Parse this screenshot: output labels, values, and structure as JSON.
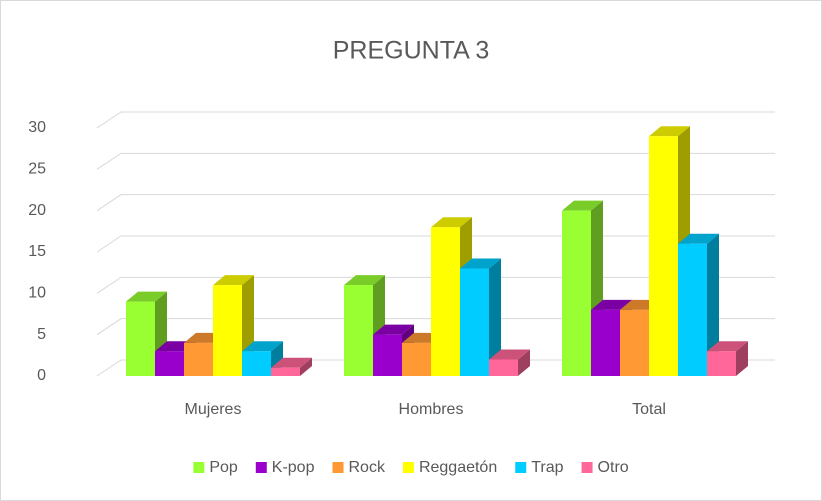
{
  "chart_data": {
    "type": "bar3d",
    "title": "PREGUNTA 3",
    "categories": [
      "Mujeres",
      "Hombres",
      "Total"
    ],
    "series": [
      {
        "name": "Pop",
        "color": "#99ff33",
        "values": [
          9,
          11,
          20
        ]
      },
      {
        "name": "K-pop",
        "color": "#9900cc",
        "values": [
          3,
          5,
          8
        ]
      },
      {
        "name": "Rock",
        "color": "#ff9933",
        "values": [
          4,
          4,
          8
        ]
      },
      {
        "name": "Reggaetón",
        "color": "#ffff00",
        "values": [
          11,
          18,
          29
        ]
      },
      {
        "name": "Trap",
        "color": "#00ccff",
        "values": [
          3,
          13,
          16
        ]
      },
      {
        "name": "Otro",
        "color": "#ff6699",
        "values": [
          1,
          2,
          3
        ]
      }
    ],
    "ylim": [
      0,
      30
    ],
    "yticks": [
      0,
      5,
      10,
      15,
      20,
      25,
      30
    ],
    "grid": true,
    "legend": "bottom"
  }
}
